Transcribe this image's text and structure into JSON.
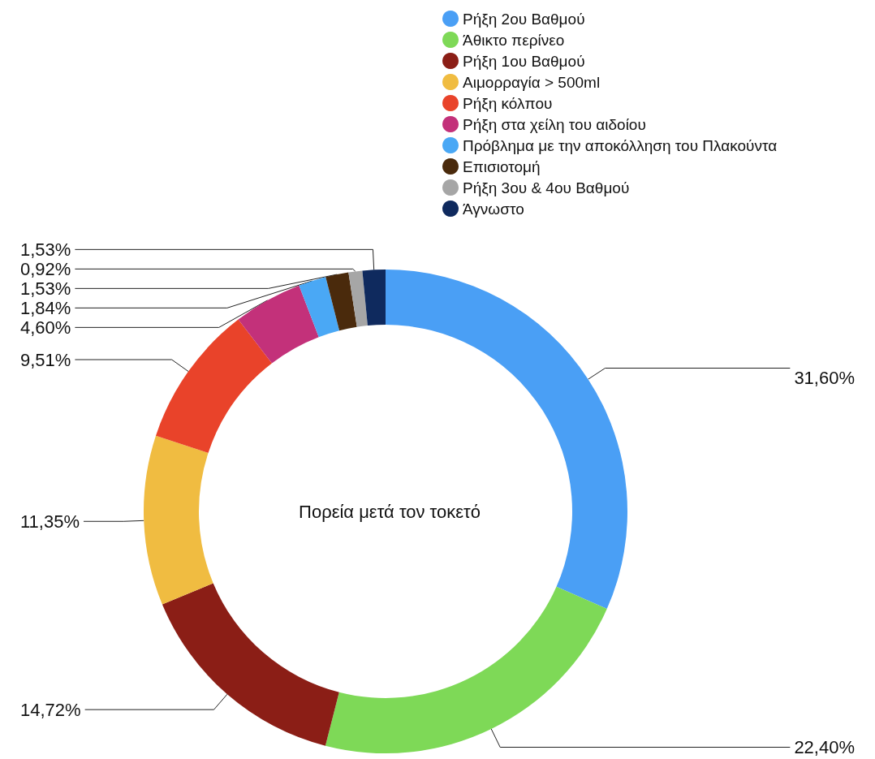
{
  "chart_data": {
    "type": "donut",
    "title": "Πορεία μετά τον τοκετό",
    "categories": [
      "Ρήξη 2ου Βαθμού",
      "Άθικτο περίνεο",
      "Ρήξη 1ου Βαθμού",
      "Αιμορραγία > 500ml",
      "Ρήξη κόλπου",
      "Ρήξη στα χείλη του αιδοίου",
      "Πρόβλημα με την αποκόλληση του Πλακούντα",
      "Επισιοτομή",
      "Ρήξη 3ου & 4ου Βαθμού",
      "Άγνωστο"
    ],
    "values": [
      31.6,
      22.4,
      14.72,
      11.35,
      9.51,
      4.6,
      1.84,
      1.53,
      0.92,
      1.53
    ],
    "value_labels": [
      "31,60%",
      "22,40%",
      "14,72%",
      "11,35%",
      "9,51%",
      "4,60%",
      "1,84%",
      "1,53%",
      "0,92%",
      "1,53%"
    ],
    "colors": [
      "#4a9ff5",
      "#7ed957",
      "#8b1e16",
      "#f0bc41",
      "#e9432a",
      "#c3317a",
      "#4aa8f5",
      "#4a2a0c",
      "#a6a6a6",
      "#0f2a5e"
    ],
    "legend": "top right"
  }
}
